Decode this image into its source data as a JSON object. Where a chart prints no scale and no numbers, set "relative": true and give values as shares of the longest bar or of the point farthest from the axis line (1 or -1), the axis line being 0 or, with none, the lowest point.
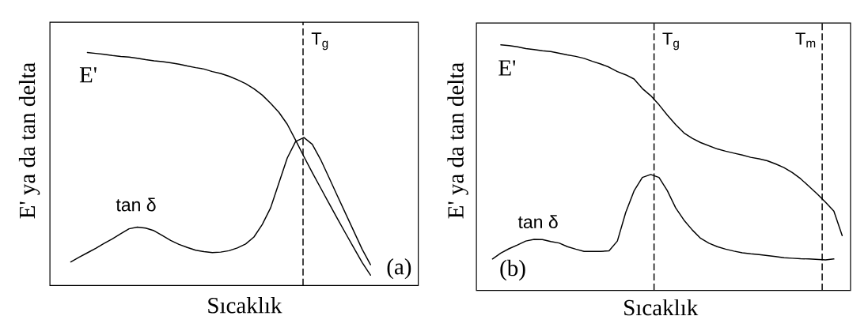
{
  "chart_data": [
    {
      "type": "line",
      "relative": true,
      "xlabel": "Sıcaklık",
      "ylabel": "E' ya da tan delta",
      "categories": [
        null,
        null,
        null,
        null,
        null,
        null,
        null,
        null,
        null,
        null,
        null,
        null,
        null,
        null,
        null,
        null,
        null,
        null,
        null,
        null,
        null,
        null,
        null,
        null,
        null,
        null,
        null,
        null,
        null,
        null,
        null,
        null,
        null,
        null,
        null,
        null,
        null
      ],
      "series": [
        {
          "name": "E'",
          "color": "#000000",
          "values": [
            null,
            null,
            1.0,
            0.996,
            0.992,
            0.987,
            0.983,
            0.98,
            0.975,
            0.969,
            0.964,
            0.961,
            0.956,
            0.95,
            0.942,
            0.935,
            0.929,
            0.918,
            0.91,
            0.898,
            0.883,
            0.866,
            0.844,
            0.817,
            0.782,
            0.743,
            0.692,
            0.624,
            0.553,
            0.485,
            0.419,
            0.353,
            0.288,
            0.224,
            0.161,
            0.098,
            0.044
          ]
        },
        {
          "name": "tan δ",
          "color": "#000000",
          "values": [
            0.101,
            0.121,
            0.14,
            0.159,
            0.18,
            0.2,
            0.222,
            0.243,
            0.25,
            0.246,
            0.235,
            0.214,
            0.193,
            0.176,
            0.163,
            0.151,
            0.145,
            0.141,
            0.143,
            0.149,
            0.161,
            0.178,
            0.208,
            0.262,
            0.333,
            0.44,
            0.547,
            0.618,
            0.635,
            0.606,
            0.541,
            0.464,
            0.386,
            0.309,
            0.232,
            0.155,
            0.089
          ]
        }
      ],
      "annotations": [
        "T$_{g}$",
        "(a)"
      ]
    },
    {
      "type": "line",
      "relative": true,
      "xlabel": "Sıcaklık",
      "ylabel": "E' ya da tan delta",
      "categories": [
        null,
        null,
        null,
        null,
        null,
        null,
        null,
        null,
        null,
        null,
        null,
        null,
        null,
        null,
        null,
        null,
        null,
        null,
        null,
        null,
        null,
        null,
        null,
        null,
        null,
        null,
        null,
        null,
        null,
        null,
        null,
        null,
        null,
        null,
        null,
        null,
        null,
        null,
        null,
        null,
        null,
        null,
        null
      ],
      "series": [
        {
          "name": "E'",
          "color": "#000000",
          "values": [
            null,
            1.0,
            0.997,
            0.992,
            0.985,
            0.981,
            0.976,
            0.973,
            0.966,
            0.959,
            0.953,
            0.945,
            0.933,
            0.922,
            0.909,
            0.891,
            0.878,
            0.861,
            0.822,
            0.793,
            0.756,
            0.714,
            0.675,
            0.641,
            0.619,
            0.602,
            0.589,
            0.576,
            0.567,
            0.559,
            0.551,
            0.542,
            0.536,
            0.528,
            0.515,
            0.5,
            0.48,
            0.455,
            0.424,
            0.393,
            0.359,
            0.323,
            0.223
          ]
        },
        {
          "name": "tan δ",
          "color": "#000000",
          "values": [
            0.128,
            0.152,
            0.17,
            0.185,
            0.201,
            0.208,
            0.207,
            0.199,
            0.193,
            0.178,
            0.168,
            0.159,
            0.159,
            0.159,
            0.161,
            0.201,
            0.317,
            0.405,
            0.46,
            0.472,
            0.46,
            0.406,
            0.336,
            0.286,
            0.246,
            0.212,
            0.192,
            0.178,
            0.168,
            0.16,
            0.153,
            0.149,
            0.146,
            0.142,
            0.138,
            0.133,
            0.131,
            0.129,
            0.128,
            0.126,
            0.124,
            0.128,
            null
          ]
        }
      ],
      "annotations": [
        "T$_{g}$",
        "T$_{m}$",
        "(b)"
      ]
    }
  ]
}
